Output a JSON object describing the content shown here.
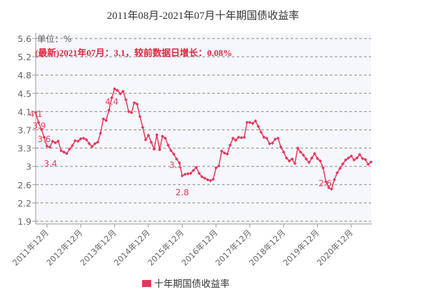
{
  "colors": {
    "series": "#e8375a",
    "label": "#e4405c",
    "annotation": "#e0283f",
    "grid": "#8c8c8c",
    "axis": "#999999",
    "plot_bg": "#f6f6fd"
  },
  "chart_data": {
    "type": "line",
    "title": "2011年08月-2021年07月十年期国债收益率",
    "ylabel": "单位：%",
    "xlabel": "",
    "annotation": "(最新)2021年07月：3.1，较前数据日增长：0.08%",
    "ylim": [
      1.9,
      5.6
    ],
    "y_tick_labels": [
      "1.9",
      "2.2",
      "2.6",
      "3",
      "3.3",
      "3.7",
      "4.1",
      "4.5",
      "4.8",
      "5.2",
      "5.6"
    ],
    "x_tick_labels": [
      "2011年12月",
      "2012年12月",
      "2013年12月",
      "2014年12月",
      "2015年12月",
      "2016年12月",
      "2017年12月",
      "2018年12月",
      "2019年12月",
      "2020年12月"
    ],
    "grid": true,
    "legend": "bottom",
    "x": [
      "2011年08月",
      "2011年09月",
      "2011年10月",
      "2011年11月",
      "2011年12月",
      "2012年01月",
      "2012年02月",
      "2012年03月",
      "2012年04月",
      "2012年05月",
      "2012年06月",
      "2012年07月",
      "2012年08月",
      "2012年09月",
      "2012年10月",
      "2012年11月",
      "2012年12月",
      "2013年01月",
      "2013年02月",
      "2013年03月",
      "2013年04月",
      "2013年05月",
      "2013年06月",
      "2013年07月",
      "2013年08月",
      "2013年09月",
      "2013年10月",
      "2013年11月",
      "2013年12月",
      "2014年01月",
      "2014年02月",
      "2014年03月",
      "2014年04月",
      "2014年05月",
      "2014年06月",
      "2014年07月",
      "2014年08月",
      "2014年09月",
      "2014年10月",
      "2014年11月",
      "2014年12月",
      "2015年01月",
      "2015年02月",
      "2015年03月",
      "2015年04月",
      "2015年05月",
      "2015年06月",
      "2015年07月",
      "2015年08月",
      "2015年09月",
      "2015年10月",
      "2015年11月",
      "2015年12月",
      "2016年01月",
      "2016年02月",
      "2016年03月",
      "2016年04月",
      "2016年05月",
      "2016年06月",
      "2016年07月",
      "2016年08月",
      "2016年09月",
      "2016年10月",
      "2016年11月",
      "2016年12月",
      "2017年01月",
      "2017年02月",
      "2017年03月",
      "2017年04月",
      "2017年05月",
      "2017年06月",
      "2017年07月",
      "2017年08月",
      "2017年09月",
      "2017年10月",
      "2017年11月",
      "2017年12月",
      "2018年01月",
      "2018年02月",
      "2018年03月",
      "2018年04月",
      "2018年05月",
      "2018年06月",
      "2018年07月",
      "2018年08月",
      "2018年09月",
      "2018年10月",
      "2018年11月",
      "2018年12月",
      "2019年01月",
      "2019年02月",
      "2019年03月",
      "2019年04月",
      "2019年05月",
      "2019年06月",
      "2019年07月",
      "2019年08月",
      "2019年09月",
      "2019年10月",
      "2019年11月",
      "2019年12月",
      "2020年01月",
      "2020年02月",
      "2020年03月",
      "2020年04月",
      "2020年05月",
      "2020年06月",
      "2020年07月",
      "2020年08月",
      "2020年09月",
      "2020年10月",
      "2020年11月",
      "2020年12月",
      "2021年01月",
      "2021年02月",
      "2021年03月",
      "2021年04月",
      "2021年05月",
      "2021年06月",
      "2021年07月"
    ],
    "series": [
      {
        "name": "十年期国债收益率",
        "values": [
          4.1,
          3.9,
          3.76,
          3.6,
          3.42,
          3.4,
          3.52,
          3.49,
          3.52,
          3.33,
          3.3,
          3.27,
          3.36,
          3.43,
          3.53,
          3.52,
          3.57,
          3.58,
          3.55,
          3.47,
          3.41,
          3.47,
          3.5,
          3.68,
          3.97,
          3.94,
          4.15,
          4.4,
          4.58,
          4.55,
          4.48,
          4.53,
          4.36,
          4.12,
          4.1,
          4.3,
          4.27,
          4.02,
          3.8,
          3.55,
          3.64,
          3.5,
          3.36,
          3.65,
          3.35,
          3.62,
          3.58,
          3.44,
          3.33,
          3.26,
          3.16,
          3.08,
          2.82,
          2.85,
          2.86,
          2.87,
          2.93,
          2.99,
          2.87,
          2.8,
          2.77,
          2.74,
          2.72,
          2.75,
          2.98,
          3.02,
          3.32,
          3.28,
          3.26,
          3.44,
          3.58,
          3.54,
          3.6,
          3.59,
          3.6,
          3.9,
          3.9,
          3.88,
          3.93,
          3.82,
          3.7,
          3.6,
          3.58,
          3.47,
          3.48,
          3.56,
          3.58,
          3.4,
          3.3,
          3.18,
          3.12,
          3.16,
          3.07,
          3.38,
          3.3,
          3.24,
          3.16,
          3.09,
          3.18,
          3.27,
          3.17,
          3.12,
          2.98,
          2.7,
          2.58,
          2.55,
          2.74,
          2.88,
          2.97,
          3.06,
          3.14,
          3.18,
          3.22,
          3.14,
          3.18,
          3.25,
          3.17,
          3.15,
          3.05,
          3.1
        ]
      }
    ],
    "point_labels": [
      {
        "x": "2011年08月",
        "text": "4.1"
      },
      {
        "x": "2011年09月",
        "text": "3.9"
      },
      {
        "x": "2011年11月",
        "text": "3.6"
      },
      {
        "x": "2012年01月",
        "text": "3.4"
      },
      {
        "x": "2013年11月",
        "text": "4.4"
      },
      {
        "x": "2015年11月",
        "text": "3.1"
      },
      {
        "x": "2015年12月",
        "text": "2.8"
      },
      {
        "x": "2020年04月",
        "text": "2.6"
      }
    ]
  }
}
